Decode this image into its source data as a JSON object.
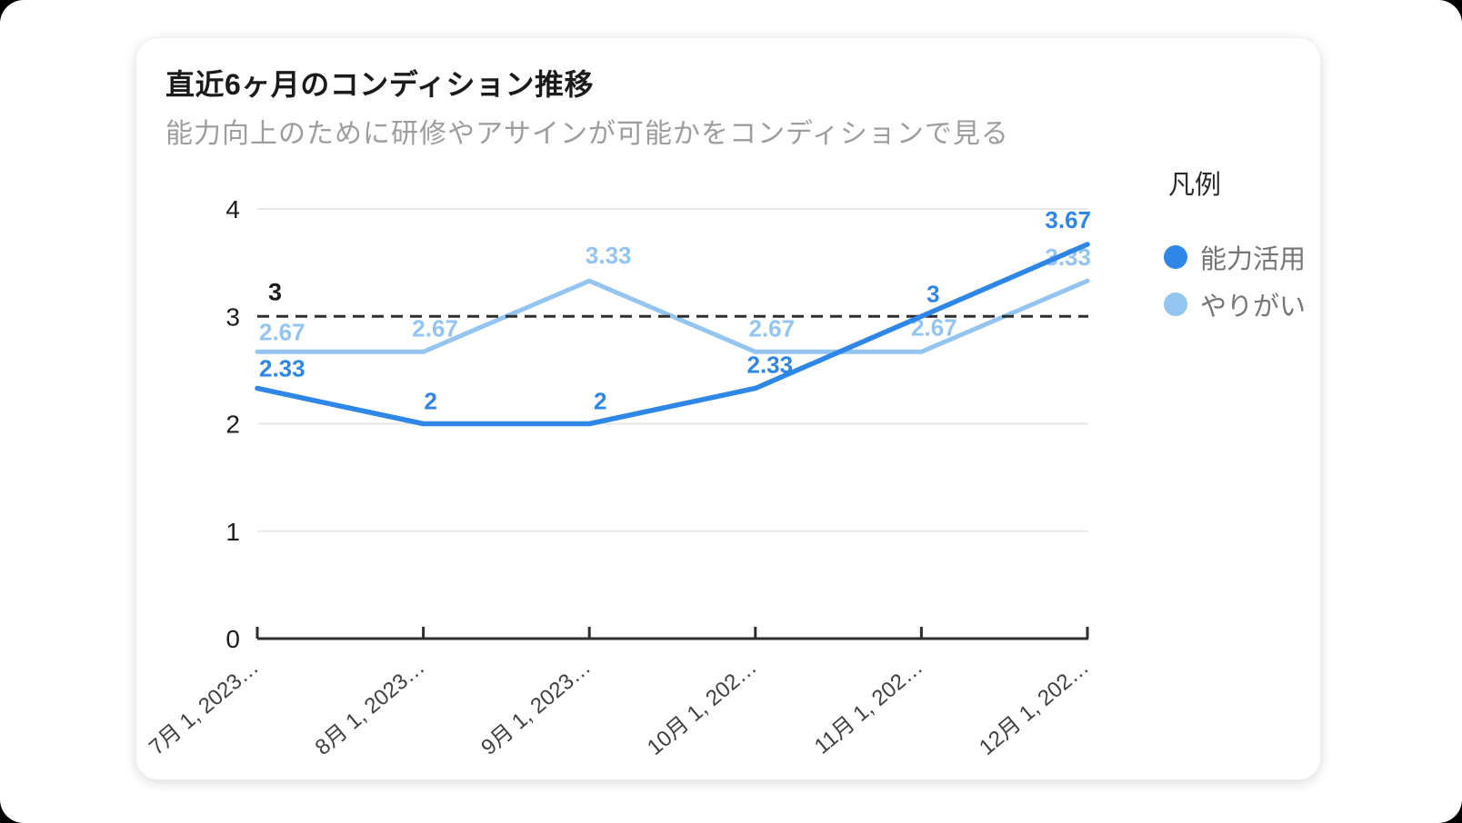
{
  "card": {
    "title": "直近6ヶ月のコンディション推移",
    "subtitle": "能力向上のために研修やアサインが可能かをコンディションで見る"
  },
  "legend": {
    "title": "凡例",
    "items": [
      {
        "label": "能力活用",
        "color": "#2e86e6"
      },
      {
        "label": "やりがい",
        "color": "#94c4f0"
      }
    ]
  },
  "chart_data": {
    "type": "line",
    "title": "直近6ヶ月のコンディション推移",
    "subtitle": "能力向上のために研修やアサインが可能かをコンディションで見る",
    "categories": [
      "7月 1, 2023…",
      "8月 1, 2023…",
      "9月 1, 2023…",
      "10月 1, 202…",
      "11月 1, 202…",
      "12月 1, 202…"
    ],
    "series": [
      {
        "name": "能力活用",
        "color": "#2e86e6",
        "values": [
          2.33,
          2,
          2,
          2.33,
          3,
          3.67
        ],
        "labels": [
          "2.33",
          "2",
          "2",
          "2.33",
          "3",
          "3.67"
        ]
      },
      {
        "name": "やりがい",
        "color": "#94c4f0",
        "values": [
          2.67,
          2.67,
          3.33,
          2.67,
          2.67,
          3.33
        ],
        "labels": [
          "2.67",
          "2.67",
          "3.33",
          "2.67",
          "2.67",
          "3.33"
        ]
      }
    ],
    "ylim": [
      0,
      4
    ],
    "yticks": [
      0,
      1,
      2,
      3,
      4
    ],
    "reference_line": {
      "value": 3,
      "label": "3",
      "style": "dashed",
      "color": "#2e2e2e"
    },
    "grid": "horizontal",
    "grid_color": "#e7e7e7",
    "axis_color": "#2e2e2e",
    "ytick_label_color": "#1d1d1f",
    "xtick_label_color": "#3f3f3f",
    "legend_position": "right",
    "xlabel": "",
    "ylabel": ""
  }
}
